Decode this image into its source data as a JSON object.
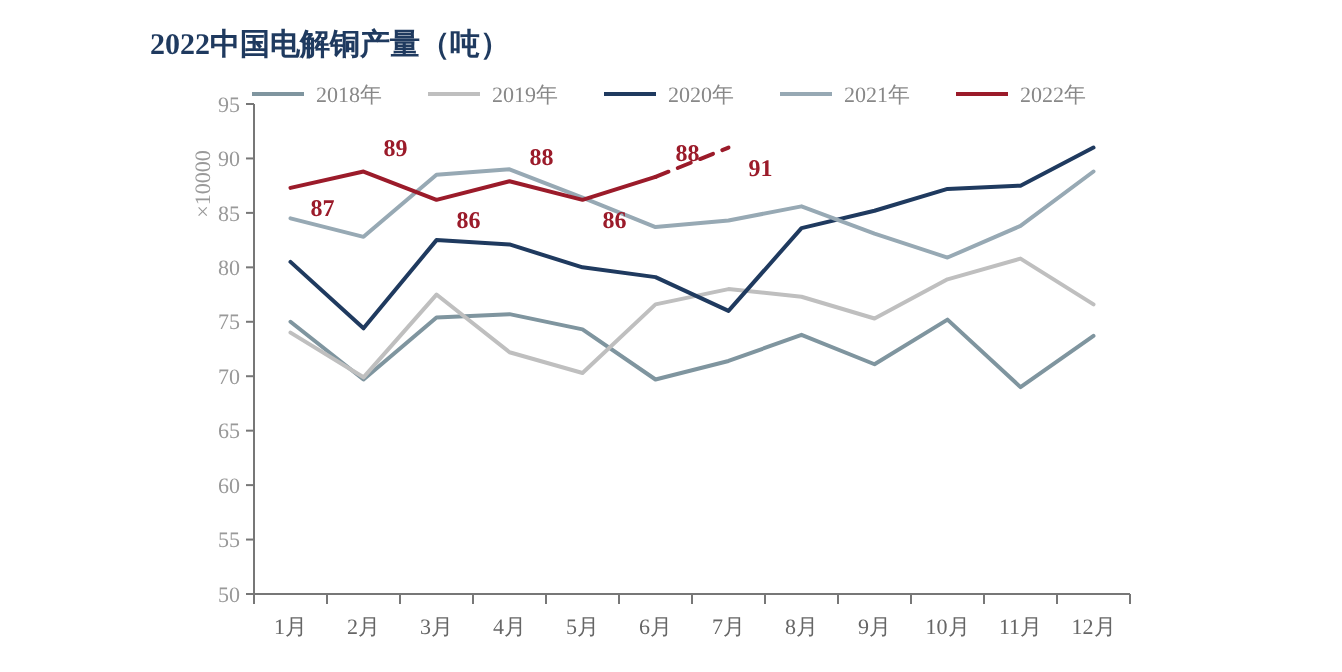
{
  "chart_data": {
    "type": "line",
    "title": "2022中国电解铜产量（吨）",
    "ylabel": "×10000",
    "categories": [
      "1月",
      "2月",
      "3月",
      "4月",
      "5月",
      "6月",
      "7月",
      "8月",
      "9月",
      "10月",
      "11月",
      "12月"
    ],
    "series": [
      {
        "name": "2018年",
        "color": "#7f959f",
        "values": [
          75.0,
          69.7,
          75.4,
          75.7,
          74.3,
          69.7,
          71.4,
          73.8,
          71.1,
          75.2,
          69.0,
          73.7
        ]
      },
      {
        "name": "2019年",
        "color": "#bfbfbf",
        "values": [
          74.0,
          69.9,
          77.5,
          72.2,
          70.3,
          76.6,
          78.0,
          77.3,
          75.3,
          78.9,
          80.8,
          76.6
        ]
      },
      {
        "name": "2020年",
        "color": "#1f3a5f",
        "values": [
          80.5,
          74.4,
          82.5,
          82.1,
          80.0,
          79.1,
          76.0,
          83.6,
          85.2,
          87.2,
          87.5,
          91.0
        ]
      },
      {
        "name": "2021年",
        "color": "#97a9b4",
        "values": [
          84.5,
          82.8,
          88.5,
          89.0,
          86.4,
          83.7,
          84.3,
          85.6,
          83.1,
          80.9,
          83.8,
          88.8
        ]
      },
      {
        "name": "2022年",
        "color": "#9b1b2a",
        "values": [
          87.3,
          88.8,
          86.2,
          87.9,
          86.2,
          88.3,
          null,
          null,
          null,
          null,
          null,
          null
        ],
        "value_labels": [
          "87",
          "89",
          "86",
          "88",
          "86",
          "88",
          null,
          null,
          null,
          null,
          null,
          null
        ]
      },
      {
        "color": "#9b1b2a",
        "line_style": "dashed",
        "values": [
          null,
          null,
          null,
          null,
          null,
          88.3,
          91.0,
          null,
          null,
          null,
          null,
          null
        ],
        "value_labels": [
          null,
          null,
          null,
          null,
          null,
          null,
          "91",
          null,
          null,
          null,
          null,
          null
        ]
      }
    ],
    "ylim": [
      50,
      95
    ],
    "yticks": [
      50,
      55,
      60,
      65,
      70,
      75,
      80,
      85,
      90,
      95
    ],
    "grid": false,
    "legend": "top",
    "marker": "none"
  }
}
